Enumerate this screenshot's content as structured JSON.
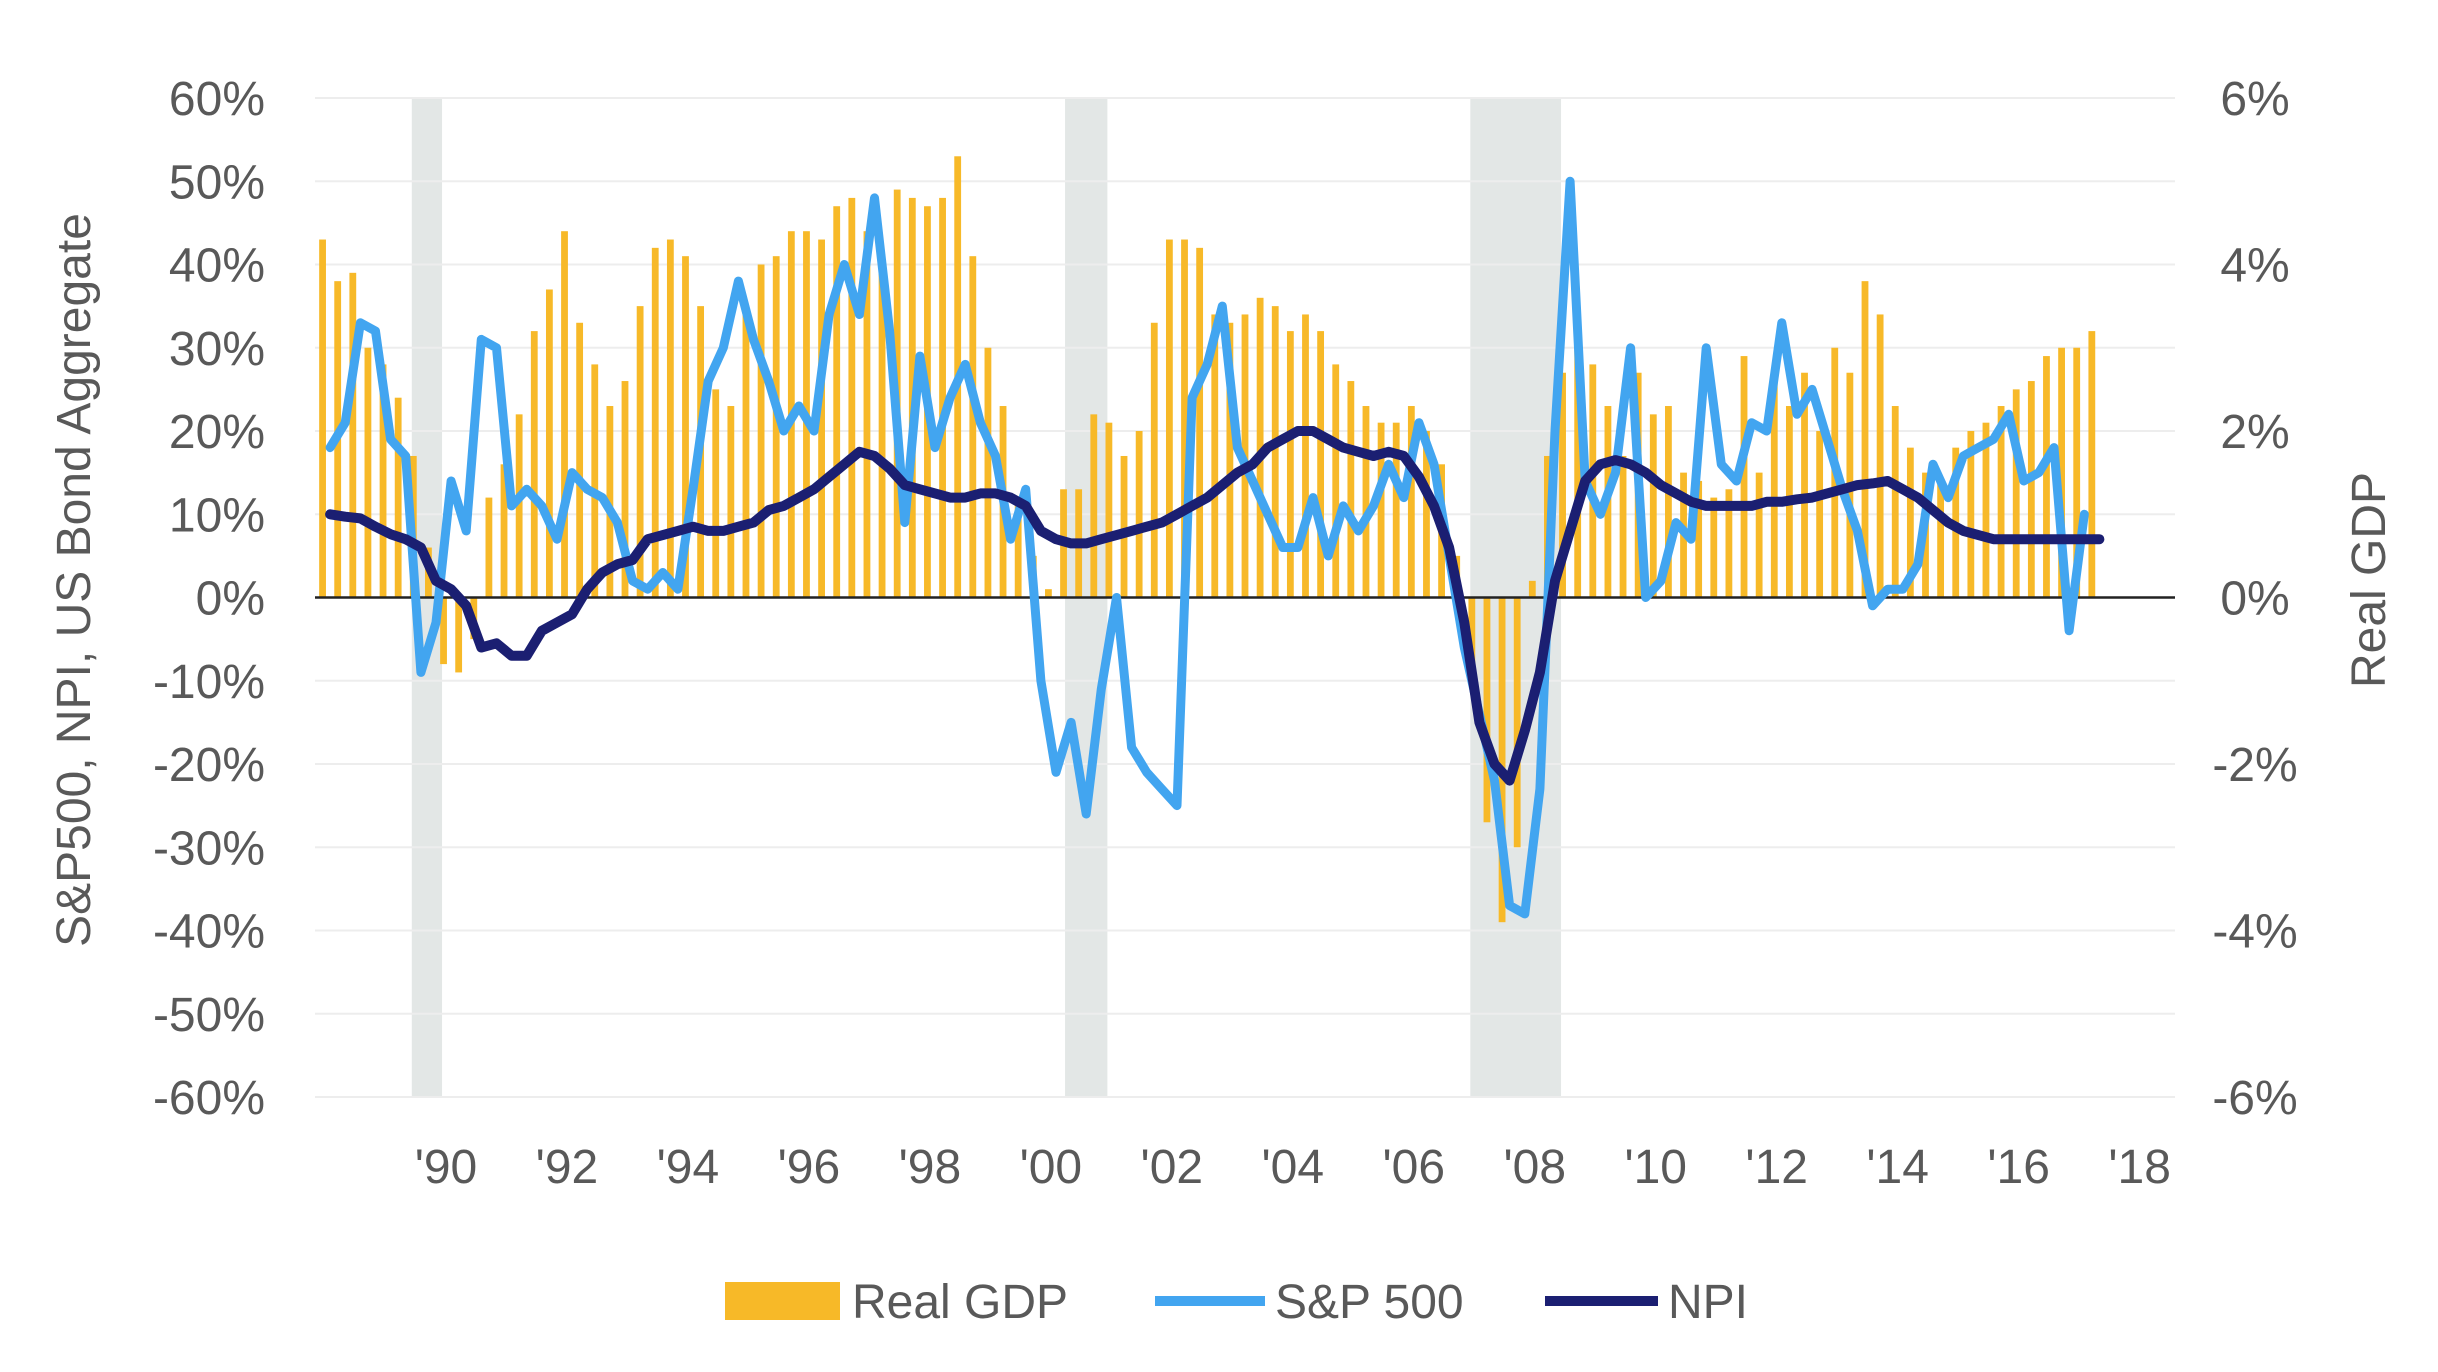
{
  "chart_data": {
    "type": "bar+line",
    "title": "",
    "y_left": {
      "label": "S&P500, NPI, US Bond Aggregate",
      "ylim": [
        -60,
        60
      ],
      "ticks": [
        60,
        50,
        40,
        30,
        20,
        10,
        0,
        -10,
        -20,
        -30,
        -40,
        -50,
        -60
      ],
      "tick_labels": [
        "60%",
        "50%",
        "40%",
        "30%",
        "20%",
        "10%",
        "0%",
        "-10%",
        "-20%",
        "-30%",
        "-40%",
        "-50%",
        "-60%"
      ]
    },
    "y_right": {
      "label": "Real GDP",
      "ylim": [
        -6,
        6
      ],
      "ticks": [
        6,
        4,
        2,
        0,
        -2,
        -4,
        -6
      ],
      "tick_labels": [
        "6%",
        "4%",
        "2%",
        "0%",
        "-2%",
        "-4%",
        "-6%"
      ]
    },
    "x_axis": {
      "range": [
        1988.0,
        2018.75
      ],
      "ticks": [
        1990,
        1992,
        1994,
        1996,
        1998,
        2000,
        2002,
        2004,
        2006,
        2008,
        2010,
        2012,
        2014,
        2016,
        2018
      ],
      "tick_labels": [
        "'90",
        "'92",
        "'94",
        "'96",
        "'98",
        "'00",
        "'02",
        "'04",
        "'06",
        "'08",
        "'10",
        "'12",
        "'14",
        "'16",
        "'18"
      ]
    },
    "recessions": [
      [
        1989.6,
        1990.1
      ],
      [
        2000.4,
        2001.1
      ],
      [
        2007.1,
        2008.6
      ]
    ],
    "grid": "horizontal",
    "legend_position": "bottom",
    "legend": [
      "Real GDP",
      "S&P 500",
      "NPI"
    ],
    "colors": {
      "gdp": "#F7B928",
      "sp500": "#42A5F0",
      "npi": "#1B1F72",
      "recession": "#E3E7E6",
      "zero_line": "#222222",
      "grid": "#EDEDED"
    },
    "series": [
      {
        "name": "Real GDP",
        "axis": "right",
        "kind": "bar",
        "x_start": 1988.0,
        "x_step": 0.25,
        "values": [
          4.3,
          3.8,
          3.9,
          3.0,
          2.8,
          2.4,
          1.7,
          0.6,
          -0.8,
          -0.9,
          -0.5,
          1.2,
          1.6,
          2.2,
          3.2,
          3.7,
          4.4,
          3.3,
          2.8,
          2.3,
          2.6,
          3.5,
          4.2,
          4.3,
          4.1,
          3.5,
          2.5,
          2.3,
          3.5,
          4.0,
          4.1,
          4.4,
          4.4,
          4.3,
          4.7,
          4.8,
          4.4,
          4.1,
          4.9,
          4.8,
          4.7,
          4.8,
          5.3,
          4.1,
          3.0,
          2.3,
          1.2,
          0.5,
          0.1,
          1.3,
          1.3,
          2.2,
          2.1,
          1.7,
          2.0,
          3.3,
          4.3,
          4.3,
          4.2,
          3.4,
          3.3,
          3.4,
          3.6,
          3.5,
          3.2,
          3.4,
          3.2,
          2.8,
          2.6,
          2.3,
          2.1,
          2.1,
          2.3,
          2.0,
          1.6,
          0.5,
          -0.9,
          -2.7,
          -3.9,
          -3.0,
          0.2,
          1.7,
          2.7,
          3.2,
          2.8,
          2.3,
          1.7,
          2.7,
          2.2,
          2.3,
          1.5,
          1.4,
          1.2,
          1.3,
          2.9,
          1.5,
          2.6,
          2.3,
          2.7,
          2.0,
          3.0,
          2.7,
          3.8,
          3.4,
          2.3,
          1.8,
          1.5,
          1.4,
          1.8,
          2.0,
          2.1,
          2.3,
          2.5,
          2.6,
          2.9,
          3.0,
          3.0,
          3.2
        ]
      },
      {
        "name": "S&P 500",
        "axis": "left",
        "kind": "line",
        "x_start": 1988.25,
        "x_step": 0.25,
        "values": [
          18,
          21,
          33,
          32,
          19,
          17,
          -9,
          -3,
          14,
          8,
          31,
          30,
          11,
          13,
          11,
          7,
          15,
          13,
          12,
          9,
          2,
          1,
          3,
          1,
          13,
          26,
          30,
          38,
          31,
          26,
          20,
          23,
          20,
          34,
          40,
          34,
          48,
          32,
          9,
          29,
          18,
          24,
          28,
          21,
          17,
          7,
          13,
          -10,
          -21,
          -15,
          -26,
          -11,
          0,
          -18,
          -21,
          -23,
          -25,
          24,
          28,
          35,
          18,
          14,
          10,
          6,
          6,
          12,
          5,
          11,
          8,
          11,
          16,
          12,
          21,
          16,
          5,
          -6,
          -14,
          -22,
          -37,
          -38,
          -23,
          20,
          50,
          14,
          10,
          15,
          30,
          0,
          2,
          9,
          7,
          30,
          16,
          14,
          21,
          20,
          33,
          22,
          25,
          19,
          13,
          8,
          -1,
          1,
          1,
          4,
          16,
          12,
          17,
          18,
          19,
          22,
          14,
          15,
          18,
          -4,
          10
        ]
      },
      {
        "name": "NPI",
        "axis": "left",
        "kind": "line",
        "x_start": 1988.25,
        "x_step": 0.25,
        "values": [
          10,
          9.7,
          9.5,
          8.5,
          7.6,
          7,
          6,
          2,
          1,
          -1,
          -6,
          -5.5,
          -7,
          -7,
          -4,
          -3,
          -2,
          1,
          3,
          4,
          4.5,
          7,
          7.5,
          8,
          8.5,
          8,
          8,
          8.5,
          9,
          10.5,
          11,
          12,
          13,
          14.5,
          16,
          17.5,
          17,
          15.5,
          13.5,
          13,
          12.5,
          12,
          12,
          12.5,
          12.5,
          12,
          11,
          8,
          7,
          6.5,
          6.5,
          7,
          7.5,
          8,
          8.5,
          9,
          10,
          11,
          12,
          13.5,
          15,
          16,
          18,
          19,
          20,
          20,
          19,
          18,
          17.5,
          17,
          17.5,
          17,
          14.5,
          11,
          6,
          -3,
          -15,
          -20,
          -22,
          -16,
          -9,
          2,
          8,
          14,
          16,
          16.5,
          16,
          15,
          13.5,
          12.5,
          11.5,
          11,
          11,
          11,
          11,
          11.5,
          11.5,
          11.8,
          12,
          12.5,
          13,
          13.5,
          13.7,
          14,
          13,
          12,
          10.5,
          9,
          8,
          7.5,
          7,
          7,
          7,
          7,
          7,
          7,
          7,
          7
        ]
      }
    ]
  }
}
